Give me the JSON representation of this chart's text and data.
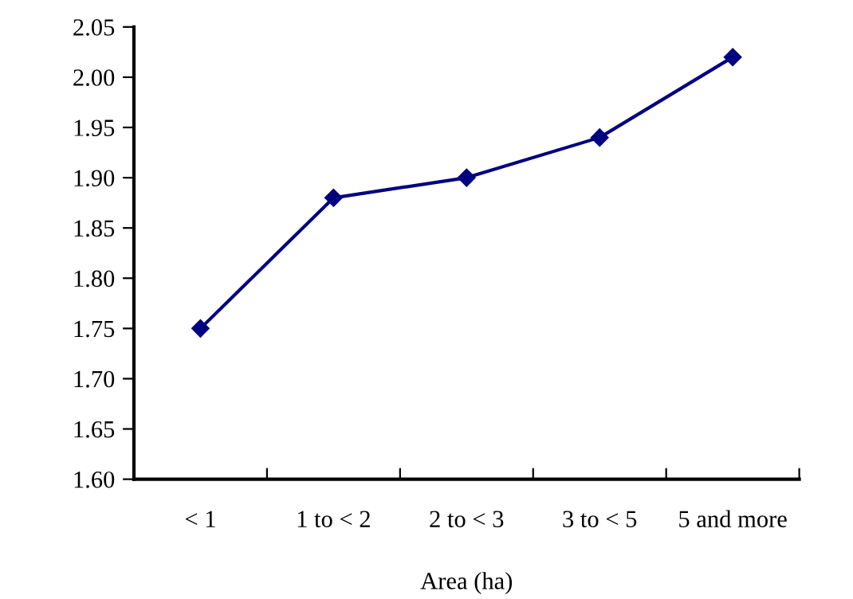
{
  "chart_data": {
    "type": "line",
    "xlabel": "Area (ha)",
    "categories": [
      "< 1",
      "1 to < 2",
      "2 to < 3",
      "3 to < 5",
      "5 and more"
    ],
    "series": [
      {
        "color": "#000080",
        "values": [
          1.75,
          1.88,
          1.9,
          1.94,
          2.02
        ]
      }
    ],
    "ylim": [
      1.6,
      2.05
    ],
    "yticks": [
      {
        "value": 1.6,
        "label": "1.60"
      },
      {
        "value": 1.65,
        "label": "1.65"
      },
      {
        "value": 1.7,
        "label": "1.70"
      },
      {
        "value": 1.75,
        "label": "1.75"
      },
      {
        "value": 1.8,
        "label": "1.80"
      },
      {
        "value": 1.85,
        "label": "1.85"
      },
      {
        "value": 1.9,
        "label": "1.90"
      },
      {
        "value": 1.95,
        "label": "1.95"
      },
      {
        "value": 2.0,
        "label": "2.00"
      },
      {
        "value": 2.05,
        "label": "2.05"
      }
    ],
    "marker": "diamond",
    "line_style": "solid",
    "grid": false,
    "legend": false
  }
}
